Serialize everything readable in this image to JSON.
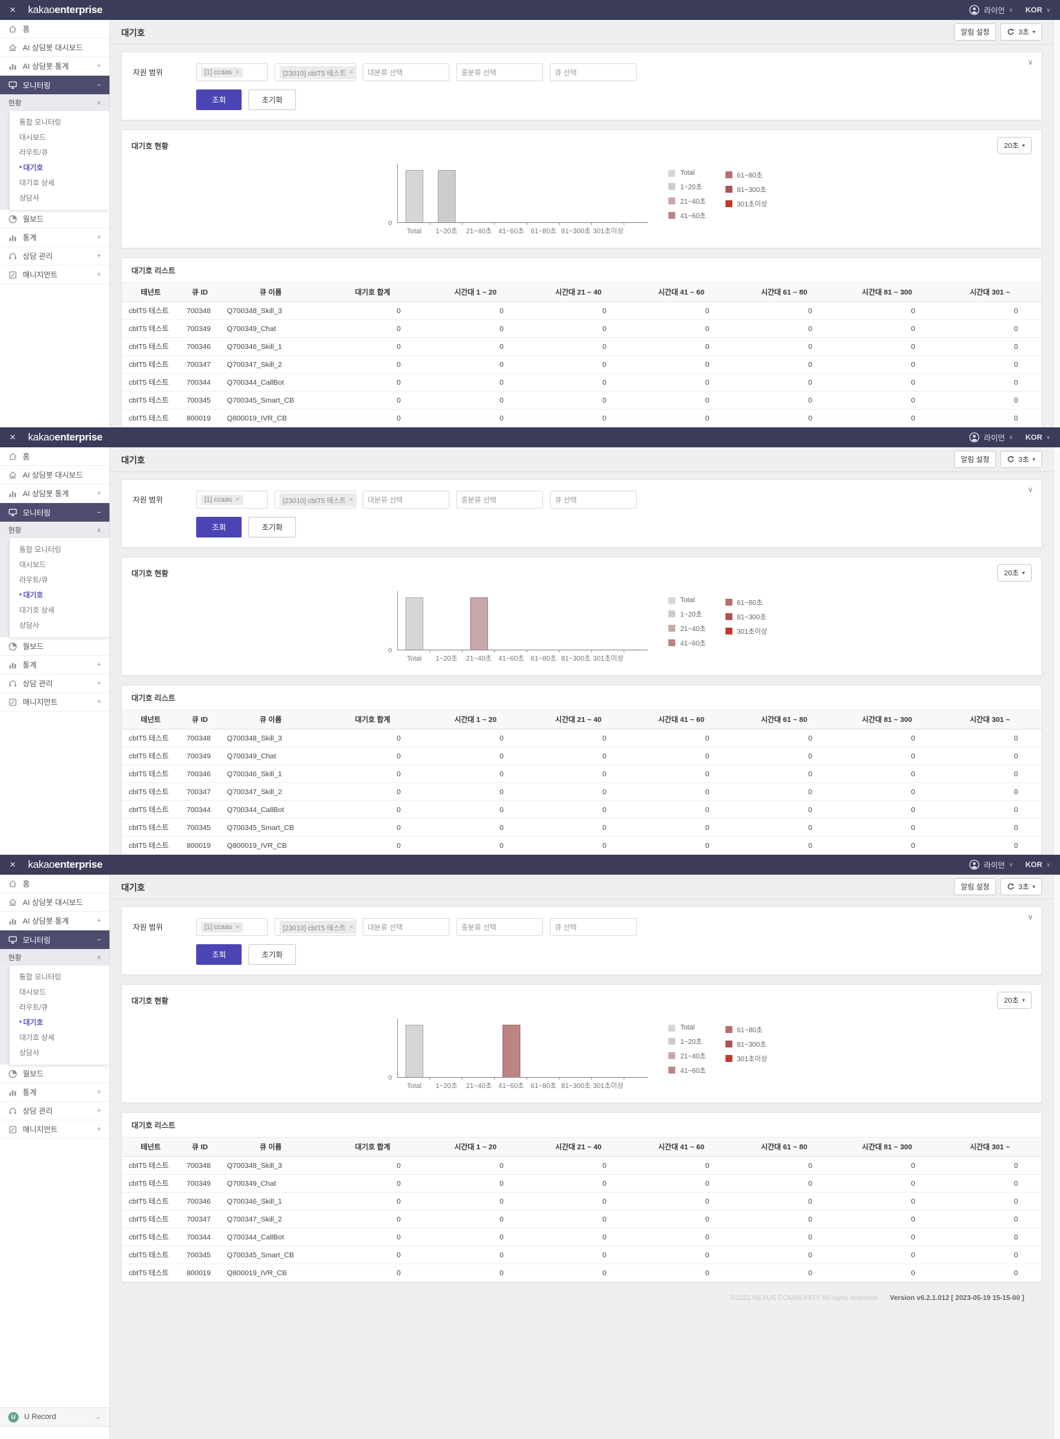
{
  "topbar": {
    "close": "×",
    "brand_prefix": "kakao",
    "brand_suffix": "enterprise",
    "user_name": "라이언",
    "locale": "KOR",
    "caret_down": "∨"
  },
  "sidebar": {
    "home": "홈",
    "ai_dashboard": "AI 상담봇 대시보드",
    "ai_stats": "AI 상담봇 통계",
    "monitoring": "모니터링",
    "status_header": "현황",
    "sub_items": [
      "통합 모니터링",
      "대시보드",
      "라우트/큐",
      "대기호",
      "대기호 상세",
      "상담사"
    ],
    "active_bullet": "•",
    "wallboard": "월보드",
    "stats": "통계",
    "counsel_mgmt": "상담 관리",
    "management": "매니지먼트",
    "plus": "+",
    "minus": "−",
    "chev_up": "∧",
    "u_record": "U Record",
    "u_record_initial": "U",
    "u_record_arrow": "→"
  },
  "page": {
    "title": "대기호",
    "alert_settings": "알림 설정",
    "refresh_interval": "3초",
    "caret": "▾",
    "collapse_chevron": "∨"
  },
  "filter": {
    "label": "자원 범위",
    "chips": [
      "[1] ccaas",
      "[23010] cbtT5 테스트"
    ],
    "chip_remove": "×",
    "placeholders": [
      "대분류 선택",
      "중분류 선택",
      "큐 선택"
    ],
    "search_label": "조회",
    "reset_label": "초기화"
  },
  "chart": {
    "title": "대기호 현황",
    "interval_label": "20초",
    "caret": "▾",
    "zero_label": "0",
    "categories": [
      "Total",
      "1~20초",
      "21~40초",
      "41~60초",
      "61~80초",
      "81~300초",
      "301초이상"
    ],
    "legend": [
      {
        "label": "Total",
        "color": "#d6d6d6"
      },
      {
        "label": "1~20초",
        "color": "#cccccc"
      },
      {
        "label": "21~40초",
        "color": "#c8a8a8"
      },
      {
        "label": "41~60초",
        "color": "#bd8484"
      },
      {
        "label": "61~80초",
        "color": "#ba6b6b"
      },
      {
        "label": "81~300초",
        "color": "#ae5252"
      },
      {
        "label": "301초이상",
        "color": "#c0392b"
      }
    ]
  },
  "chart_data": [
    {
      "type": "bar",
      "title": "대기호 현황",
      "categories": [
        "Total",
        "1~20초",
        "21~40초",
        "41~60초",
        "61~80초",
        "81~300초",
        "301초이상"
      ],
      "values": [
        1,
        1,
        0,
        0,
        0,
        0,
        0
      ],
      "xlabel": "",
      "ylabel": "",
      "ylim": [
        0,
        1
      ],
      "grid": false,
      "legend_position": "right"
    },
    {
      "type": "bar",
      "title": "대기호 현황",
      "categories": [
        "Total",
        "1~20초",
        "21~40초",
        "41~60초",
        "61~80초",
        "81~300초",
        "301초이상"
      ],
      "values": [
        1,
        0,
        1,
        0,
        0,
        0,
        0
      ],
      "xlabel": "",
      "ylabel": "",
      "ylim": [
        0,
        1
      ],
      "grid": false,
      "legend_position": "right"
    },
    {
      "type": "bar",
      "title": "대기호 현황",
      "categories": [
        "Total",
        "1~20초",
        "21~40초",
        "41~60초",
        "61~80초",
        "81~300초",
        "301초이상"
      ],
      "values": [
        1,
        0,
        0,
        1,
        0,
        0,
        0
      ],
      "xlabel": "",
      "ylabel": "",
      "ylim": [
        0,
        1
      ],
      "grid": false,
      "legend_position": "right"
    }
  ],
  "table": {
    "title": "대기호 리스트",
    "columns": [
      "테넌트",
      "큐 ID",
      "큐 이름",
      "대기호 합계",
      "시간대 1 ~ 20",
      "시간대 21 ~ 40",
      "시간대 41 ~ 60",
      "시간대 61 ~ 80",
      "시간대 81 ~ 300",
      "시간대 301 ~"
    ],
    "rows": [
      [
        "cbtT5 테스트",
        "700348",
        "Q700348_Skill_3",
        "0",
        "0",
        "0",
        "0",
        "0",
        "0",
        "0"
      ],
      [
        "cbtT5 테스트",
        "700349",
        "Q700349_Chat",
        "0",
        "0",
        "0",
        "0",
        "0",
        "0",
        "0"
      ],
      [
        "cbtT5 테스트",
        "700346",
        "Q700346_Skill_1",
        "0",
        "0",
        "0",
        "0",
        "0",
        "0",
        "0"
      ],
      [
        "cbtT5 테스트",
        "700347",
        "Q700347_Skill_2",
        "0",
        "0",
        "0",
        "0",
        "0",
        "0",
        "0"
      ],
      [
        "cbtT5 테스트",
        "700344",
        "Q700344_CallBot",
        "0",
        "0",
        "0",
        "0",
        "0",
        "0",
        "0"
      ],
      [
        "cbtT5 테스트",
        "700345",
        "Q700345_Smart_CB",
        "0",
        "0",
        "0",
        "0",
        "0",
        "0",
        "0"
      ],
      [
        "cbtT5 테스트",
        "800019",
        "Q800019_IVR_CB",
        "0",
        "0",
        "0",
        "0",
        "0",
        "0",
        "0"
      ]
    ]
  },
  "footer": {
    "copyright": "©2022 NEXUS COMMUNITY All rights reserved.",
    "version": "Version v6.2.1.012 [ 2023-05-19 15-15-00 ]"
  }
}
